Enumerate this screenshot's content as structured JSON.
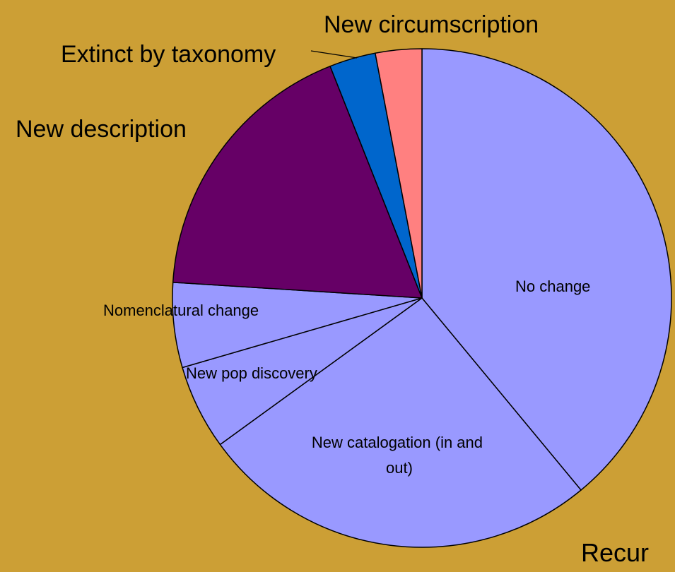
{
  "chart_data": {
    "type": "pie",
    "slices": [
      {
        "label": "No change",
        "value": 39.0,
        "color": "#9999FF"
      },
      {
        "label": "New catalogation (in and out)",
        "value": 26.0,
        "color": "#9999FF"
      },
      {
        "label": "New pop discovery",
        "value": 5.5,
        "color": "#9999FF"
      },
      {
        "label": "Nomenclatural change",
        "value": 5.5,
        "color": "#9999FF"
      },
      {
        "label": "New description",
        "value": 18.0,
        "color": "#660066"
      },
      {
        "label": "Extinct by taxonomy",
        "value": 3.0,
        "color": "#0066CC"
      },
      {
        "label": "New circumscription",
        "value": 3.0,
        "color": "#FF8080"
      }
    ],
    "start_angle_deg": 0,
    "direction": "clockwise"
  },
  "trailing_text": "Recur",
  "colors": {
    "background": "#CC9F35",
    "edge": "#000000"
  }
}
